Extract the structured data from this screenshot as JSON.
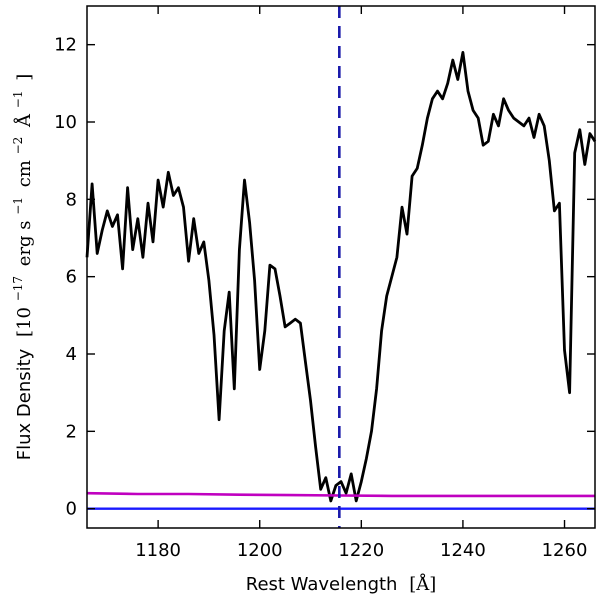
{
  "chart_data": {
    "type": "line",
    "title": "",
    "xlabel_main": "Rest Wavelength",
    "xlabel_unit": "[Å]",
    "ylabel_main": "Flux Density",
    "ylabel_unit_prefix": "[10",
    "ylabel_unit_exp1": "−17",
    "ylabel_unit_mid1": "erg s",
    "ylabel_unit_exp2": "−1",
    "ylabel_unit_mid2": "cm",
    "ylabel_unit_exp3": "−2",
    "ylabel_unit_mid3": "Å",
    "ylabel_unit_exp4": "−1",
    "ylabel_unit_suffix": "]",
    "xlim": [
      1166,
      1266
    ],
    "ylim": [
      -0.5,
      13
    ],
    "xticks": [
      1180,
      1200,
      1220,
      1240,
      1260
    ],
    "yticks": [
      0,
      2,
      4,
      6,
      8,
      10,
      12
    ],
    "grid": false,
    "reference_line": {
      "x": 1215.67,
      "style": "dashed",
      "color": "#1a1aaa"
    },
    "zero_line": {
      "y": 0,
      "color": "#1a1aff"
    },
    "series": [
      {
        "color": "#000000",
        "x": [
          1166,
          1167,
          1168,
          1169,
          1170,
          1171,
          1172,
          1173,
          1174,
          1175,
          1176,
          1177,
          1178,
          1179,
          1180,
          1181,
          1182,
          1183,
          1184,
          1185,
          1186,
          1187,
          1188,
          1189,
          1190,
          1191,
          1192,
          1193,
          1194,
          1195,
          1196,
          1197,
          1198,
          1199,
          1200,
          1201,
          1202,
          1203,
          1204,
          1205,
          1206,
          1207,
          1208,
          1209,
          1210,
          1211,
          1212,
          1213,
          1214,
          1215,
          1216,
          1217,
          1218,
          1219,
          1220,
          1221,
          1222,
          1223,
          1224,
          1225,
          1226,
          1227,
          1228,
          1229,
          1230,
          1231,
          1232,
          1233,
          1234,
          1235,
          1236,
          1237,
          1238,
          1239,
          1240,
          1241,
          1242,
          1243,
          1244,
          1245,
          1246,
          1247,
          1248,
          1249,
          1250,
          1251,
          1252,
          1253,
          1254,
          1255,
          1256,
          1257,
          1258,
          1259,
          1260,
          1261,
          1262,
          1263,
          1264,
          1265,
          1266
        ],
        "y": [
          6.5,
          8.4,
          6.6,
          7.2,
          7.7,
          7.3,
          7.6,
          6.2,
          8.3,
          6.7,
          7.5,
          6.5,
          7.9,
          6.9,
          8.5,
          7.8,
          8.7,
          8.1,
          8.3,
          7.8,
          6.4,
          7.5,
          6.6,
          6.9,
          5.9,
          4.5,
          2.3,
          4.6,
          5.6,
          3.1,
          6.7,
          8.5,
          7.4,
          5.9,
          3.6,
          4.6,
          6.3,
          6.2,
          5.5,
          4.7,
          4.8,
          4.9,
          4.8,
          3.8,
          2.8,
          1.6,
          0.5,
          0.8,
          0.2,
          0.6,
          0.7,
          0.4,
          0.9,
          0.2,
          0.7,
          1.3,
          2.0,
          3.1,
          4.6,
          5.5,
          6.0,
          6.5,
          7.8,
          7.1,
          8.6,
          8.8,
          9.4,
          10.1,
          10.6,
          10.8,
          10.6,
          11.0,
          11.6,
          11.1,
          11.8,
          10.8,
          10.3,
          10.1,
          9.4,
          9.5,
          10.2,
          9.9,
          10.6,
          10.3,
          10.1,
          10.0,
          9.9,
          10.1,
          9.6,
          10.2,
          9.9,
          9.0,
          7.7,
          7.9,
          4.1,
          3.0,
          9.2,
          9.8,
          8.9,
          9.7,
          9.5
        ]
      },
      {
        "color": "#c000c0",
        "x": [
          1166,
          1176,
          1186,
          1196,
          1206,
          1216,
          1226,
          1236,
          1246,
          1256,
          1266
        ],
        "y": [
          0.4,
          0.38,
          0.38,
          0.36,
          0.35,
          0.34,
          0.33,
          0.33,
          0.33,
          0.33,
          0.33
        ]
      }
    ]
  }
}
